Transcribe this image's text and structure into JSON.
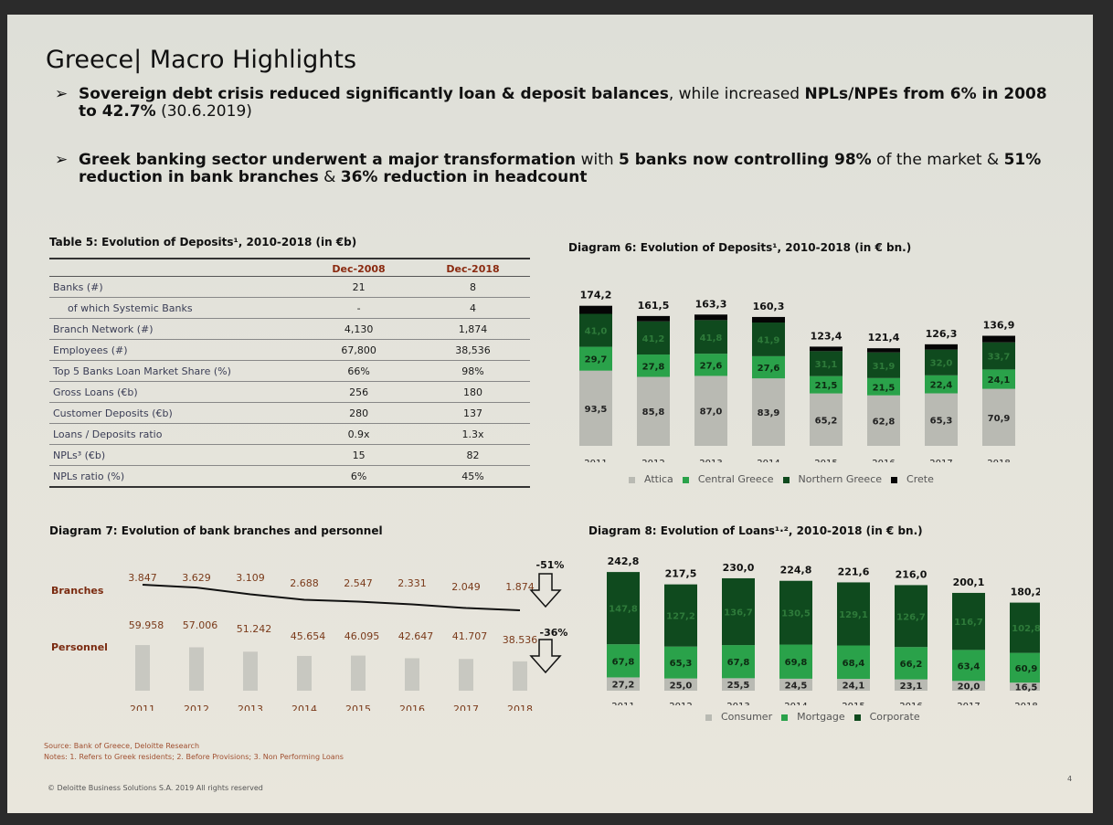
{
  "title": "Greece| Macro Highlights",
  "bullets": [
    {
      "bold1": "Sovereign debt crisis reduced significantly loan & deposit balances",
      "normal1": ", while increased ",
      "bold2": "NPLs/NPEs from 6% in 2008 to 42.7%",
      "normal2": " (30.6.2019)"
    },
    {
      "bold1": "Greek banking sector underwent a major transformation",
      "normal1": " with ",
      "bold2": "5 banks now controlling 98%",
      "normal2": " of the market & ",
      "bold3": "51% reduction in bank branches",
      "normal3": " & ",
      "bold4": "36% reduction in headcount"
    }
  ],
  "table5": {
    "title": "Table 5: Evolution of Deposits¹, 2010-2018 (in €b)",
    "headers": [
      "",
      "Dec-2008",
      "Dec-2018"
    ],
    "rows": [
      {
        "label": "Banks (#)",
        "v2008": "21",
        "v2018": "8",
        "indent": false
      },
      {
        "label": "of which Systemic Banks",
        "v2008": "-",
        "v2018": "4",
        "indent": true
      },
      {
        "label": "Branch Network (#)",
        "v2008": "4,130",
        "v2018": "1,874",
        "indent": false
      },
      {
        "label": "Employees (#)",
        "v2008": "67,800",
        "v2018": "38,536",
        "indent": false
      },
      {
        "label": "Top 5 Banks Loan Market Share (%)",
        "v2008": "66%",
        "v2018": "98%",
        "indent": false
      },
      {
        "label": "Gross Loans (€b)",
        "v2008": "256",
        "v2018": "180",
        "indent": false
      },
      {
        "label": "Customer Deposits (€b)",
        "v2008": "280",
        "v2018": "137",
        "indent": false
      },
      {
        "label": "Loans / Deposits ratio",
        "v2008": "0.9x",
        "v2018": "1.3x",
        "indent": false
      },
      {
        "label": "NPLs³ (€b)",
        "v2008": "15",
        "v2018": "82",
        "indent": false
      },
      {
        "label": "NPLs ratio (%)",
        "v2008": "6%",
        "v2018": "45%",
        "indent": false
      }
    ]
  },
  "diagram6_title": "Diagram 6: Evolution of Deposits¹, 2010-2018 (in € bn.)",
  "diagram7_title": "Diagram 7: Evolution of bank branches and personnel",
  "diagram8_title": "Diagram 8: Evolution of Loans¹·², 2010-2018 (in € bn.)",
  "chart_data": [
    {
      "type": "bar",
      "stacked": true,
      "title": "Diagram 6: Evolution of Deposits¹, 2010-2018 (in € bn.)",
      "categories": [
        "2011",
        "2012",
        "2013",
        "2014",
        "2015",
        "2016",
        "2017",
        "2018"
      ],
      "totals": [
        "174,2",
        "161,5",
        "163,3",
        "160,3",
        "123,4",
        "121,4",
        "126,3",
        "136,9"
      ],
      "series": [
        {
          "name": "Attica",
          "color": "#b9bab3",
          "values": [
            93.5,
            85.8,
            87.0,
            83.9,
            65.2,
            62.8,
            65.3,
            70.9
          ],
          "labels": [
            "93,5",
            "85,8",
            "87,0",
            "83,9",
            "65,2",
            "62,8",
            "65,3",
            "70,9"
          ]
        },
        {
          "name": "Central Greece",
          "color": "#2aa24a",
          "values": [
            29.7,
            27.8,
            27.6,
            27.6,
            21.5,
            21.5,
            22.4,
            24.1
          ],
          "labels": [
            "29,7",
            "27,8",
            "27,6",
            "27,6",
            "21,5",
            "21,5",
            "22,4",
            "24,1"
          ]
        },
        {
          "name": "Northern Greece",
          "color": "#0f4a1e",
          "values": [
            41.0,
            41.2,
            41.8,
            41.9,
            31.1,
            31.9,
            32.0,
            33.7
          ],
          "labels": [
            "41,0",
            "41,2",
            "41,8",
            "41,9",
            "31,1",
            "31,9",
            "32,0",
            "33,7"
          ]
        },
        {
          "name": "Crete",
          "color": "#050505",
          "values": [
            10.0,
            6.7,
            6.9,
            6.9,
            5.6,
            5.2,
            6.6,
            8.2
          ],
          "labels": [
            "",
            "",
            "",
            "",
            "",
            "",
            "",
            ""
          ]
        }
      ],
      "legend": "bottom"
    },
    {
      "type": "line",
      "title": "Diagram 7: Evolution of bank branches and personnel",
      "categories": [
        "2011",
        "2012",
        "2013",
        "2014",
        "2015",
        "2016",
        "2017",
        "2018"
      ],
      "series": [
        {
          "name": "Branches",
          "values": [
            3847,
            3629,
            3109,
            2688,
            2547,
            2331,
            2049,
            1874
          ],
          "labels": [
            "3.847",
            "3.629",
            "3.109",
            "2.688",
            "2.547",
            "2.331",
            "2.049",
            "1.874"
          ],
          "change": "-51%"
        },
        {
          "name": "Personnel",
          "values": [
            59958,
            57006,
            51242,
            45654,
            46095,
            42647,
            41707,
            38536
          ],
          "labels": [
            "59.958",
            "57.006",
            "51.242",
            "45.654",
            "46.095",
            "42.647",
            "41.707",
            "38.536"
          ],
          "change": "-36%"
        }
      ]
    },
    {
      "type": "bar",
      "stacked": true,
      "title": "Diagram 8: Evolution of Loans¹·², 2010-2018 (in € bn.)",
      "categories": [
        "2011",
        "2012",
        "2013",
        "2014",
        "2015",
        "2016",
        "2017",
        "2018"
      ],
      "totals": [
        "242,8",
        "217,5",
        "230,0",
        "224,8",
        "221,6",
        "216,0",
        "200,1",
        "180,2"
      ],
      "series": [
        {
          "name": "Consumer",
          "color": "#b9bab3",
          "values": [
            27.2,
            25.0,
            25.5,
            24.5,
            24.1,
            23.1,
            20.0,
            16.5
          ],
          "labels": [
            "27,2",
            "25,0",
            "25,5",
            "24,5",
            "24,1",
            "23,1",
            "20,0",
            "16,5"
          ]
        },
        {
          "name": "Mortgage",
          "color": "#2aa24a",
          "values": [
            67.8,
            65.3,
            67.8,
            69.8,
            68.4,
            66.2,
            63.4,
            60.9
          ],
          "labels": [
            "67,8",
            "65,3",
            "67,8",
            "69,8",
            "68,4",
            "66,2",
            "63,4",
            "60,9"
          ]
        },
        {
          "name": "Corporate",
          "color": "#0f4a1e",
          "values": [
            147.8,
            127.2,
            136.7,
            130.5,
            129.1,
            126.7,
            116.7,
            102.8
          ],
          "labels": [
            "147,8",
            "127,2",
            "136,7",
            "130,5",
            "129,1",
            "126,7",
            "116,7",
            "102,8"
          ]
        }
      ],
      "legend": "bottom"
    }
  ],
  "source": "Source: Bank of Greece, Deloitte Research",
  "notes": "Notes: 1. Refers to Greek residents; 2. Before Provisions; 3. Non Performing Loans",
  "copyright": "© Deloitte Business Solutions S.A. 2019 All rights reserved",
  "page": "4"
}
